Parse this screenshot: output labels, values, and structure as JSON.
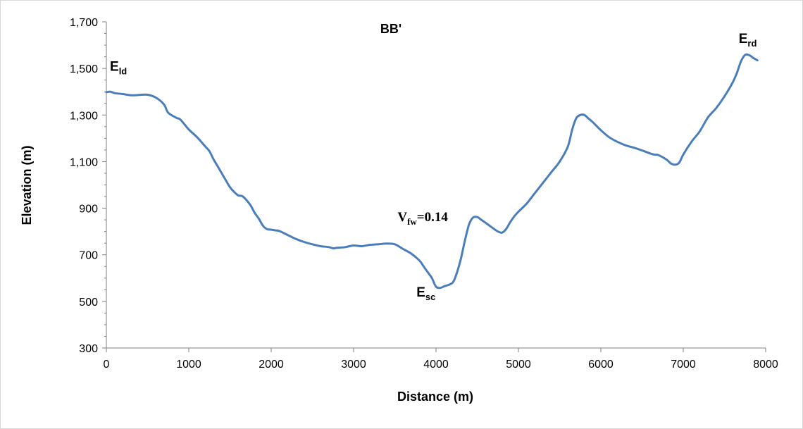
{
  "chart_data": {
    "type": "line",
    "title": "BB'",
    "xlabel": "Distance (m)",
    "ylabel": "Elevation (m)",
    "xlim": [
      0,
      8000
    ],
    "ylim": [
      300,
      1700
    ],
    "x_ticks": [
      0,
      1000,
      2000,
      3000,
      4000,
      5000,
      6000,
      7000,
      8000
    ],
    "x_tick_labels": [
      "0",
      "1000",
      "2000",
      "3000",
      "4000",
      "5000",
      "6000",
      "7000",
      "8000"
    ],
    "y_ticks": [
      300,
      500,
      700,
      900,
      1100,
      1300,
      1500,
      1700
    ],
    "y_tick_labels": [
      "300",
      "500",
      "700",
      "900",
      "1,100",
      "1,300",
      "1,500",
      "1,700"
    ],
    "grid": false,
    "legend": "none",
    "line_color": "#4a7ebb",
    "series": [
      {
        "x": [
          0,
          50,
          100,
          200,
          300,
          400,
          500,
          600,
          700,
          750,
          850,
          900,
          1000,
          1100,
          1200,
          1250,
          1300,
          1350,
          1400,
          1450,
          1500,
          1550,
          1600,
          1650,
          1700,
          1750,
          1800,
          1850,
          1900,
          1950,
          2000,
          2050,
          2100,
          2200,
          2300,
          2400,
          2500,
          2600,
          2700,
          2750,
          2800,
          2900,
          3000,
          3100,
          3200,
          3300,
          3400,
          3500,
          3600,
          3700,
          3800,
          3850,
          3900,
          3950,
          4000,
          4050,
          4100,
          4200,
          4250,
          4300,
          4350,
          4400,
          4450,
          4500,
          4550,
          4600,
          4650,
          4700,
          4750,
          4800,
          4850,
          4900,
          4950,
          5000,
          5100,
          5200,
          5300,
          5400,
          5500,
          5600,
          5650,
          5700,
          5750,
          5800,
          5850,
          5900,
          6000,
          6100,
          6200,
          6300,
          6400,
          6500,
          6600,
          6650,
          6700,
          6800,
          6850,
          6900,
          6950,
          7000,
          7100,
          7200,
          7300,
          7400,
          7500,
          7600,
          7650,
          7700,
          7750,
          7800,
          7850,
          7900
        ],
        "y": [
          1398,
          1400,
          1394,
          1390,
          1385,
          1386,
          1387,
          1375,
          1345,
          1310,
          1288,
          1280,
          1238,
          1205,
          1165,
          1145,
          1110,
          1080,
          1050,
          1020,
          990,
          970,
          955,
          952,
          935,
          912,
          880,
          855,
          825,
          810,
          808,
          805,
          802,
          785,
          768,
          755,
          745,
          737,
          733,
          728,
          730,
          733,
          740,
          737,
          743,
          745,
          748,
          745,
          725,
          705,
          675,
          650,
          625,
          600,
          563,
          558,
          565,
          580,
          620,
          680,
          760,
          830,
          860,
          862,
          850,
          838,
          825,
          812,
          800,
          795,
          810,
          840,
          865,
          885,
          920,
          965,
          1010,
          1055,
          1100,
          1165,
          1235,
          1285,
          1300,
          1300,
          1285,
          1270,
          1235,
          1205,
          1185,
          1170,
          1160,
          1148,
          1135,
          1130,
          1128,
          1108,
          1092,
          1087,
          1095,
          1130,
          1185,
          1230,
          1290,
          1330,
          1380,
          1440,
          1480,
          1530,
          1558,
          1557,
          1545,
          1535
        ]
      }
    ],
    "annotations": [
      {
        "id": "eld",
        "main": "E",
        "sub": "ld",
        "x": 0,
        "y": 1490
      },
      {
        "id": "erd",
        "main": "E",
        "sub": "rd",
        "x": 7630,
        "y": 1610
      },
      {
        "id": "esc",
        "main": "E",
        "sub": "sc",
        "x": 3720,
        "y": 520
      },
      {
        "id": "vfw",
        "main": "V",
        "sub": "fw",
        "rest": "=0.14",
        "x": 3490,
        "y": 845
      }
    ]
  }
}
